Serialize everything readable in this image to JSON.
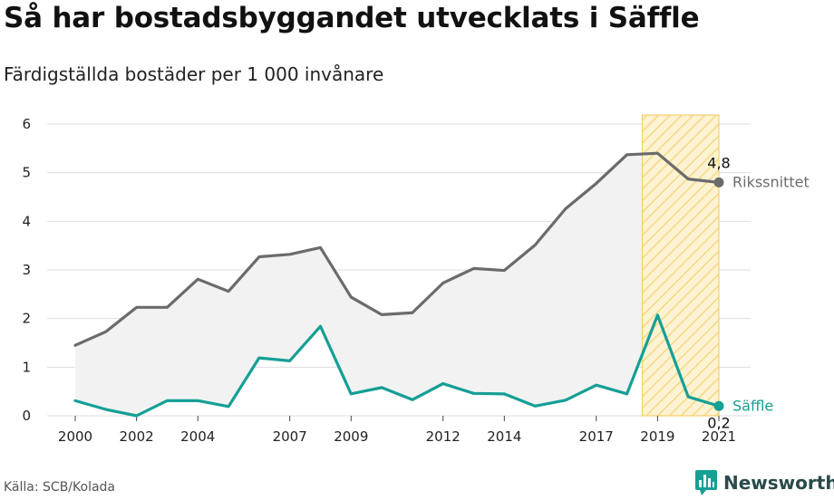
{
  "title": "Så har bostadsbyggandet utvecklats i Säffle",
  "subtitle": "Färdigställda bostäder per 1 000 invånare",
  "source": "Källa: SCB/Kolada",
  "brand": "Newsworthy",
  "colors": {
    "national": "#6b6b6b",
    "local": "#159f95",
    "highlight_fill": "#fdf0c4",
    "highlight_stroke": "#f6cf6a",
    "grid": "#dddddd",
    "band": "#f2f2f2"
  },
  "chart_data": {
    "type": "line",
    "x": [
      2000,
      2001,
      2002,
      2003,
      2004,
      2005,
      2006,
      2007,
      2008,
      2009,
      2010,
      2011,
      2012,
      2013,
      2014,
      2015,
      2016,
      2017,
      2018,
      2019,
      2020,
      2021
    ],
    "x_ticks": [
      2000,
      2002,
      2004,
      2007,
      2009,
      2012,
      2014,
      2017,
      2019,
      2021
    ],
    "ylim": [
      0,
      6
    ],
    "y_ticks": [
      0,
      1,
      2,
      3,
      4,
      5,
      6
    ],
    "grid": "horizontal",
    "highlight_range": [
      2018.5,
      2021
    ],
    "series": [
      {
        "name": "Rikssnittet",
        "values": [
          1.45,
          1.73,
          2.23,
          2.23,
          2.81,
          2.56,
          3.27,
          3.32,
          3.46,
          2.44,
          2.08,
          2.12,
          2.73,
          3.03,
          2.99,
          3.51,
          4.26,
          4.78,
          5.37,
          5.4,
          4.87,
          4.8
        ]
      },
      {
        "name": "Säffle",
        "values": [
          0.31,
          0.13,
          0.0,
          0.31,
          0.31,
          0.19,
          1.19,
          1.13,
          1.84,
          0.45,
          0.58,
          0.33,
          0.66,
          0.46,
          0.45,
          0.2,
          0.32,
          0.63,
          0.45,
          2.07,
          0.39,
          0.2
        ]
      }
    ],
    "end_labels": [
      "4,8",
      "0,2"
    ]
  }
}
